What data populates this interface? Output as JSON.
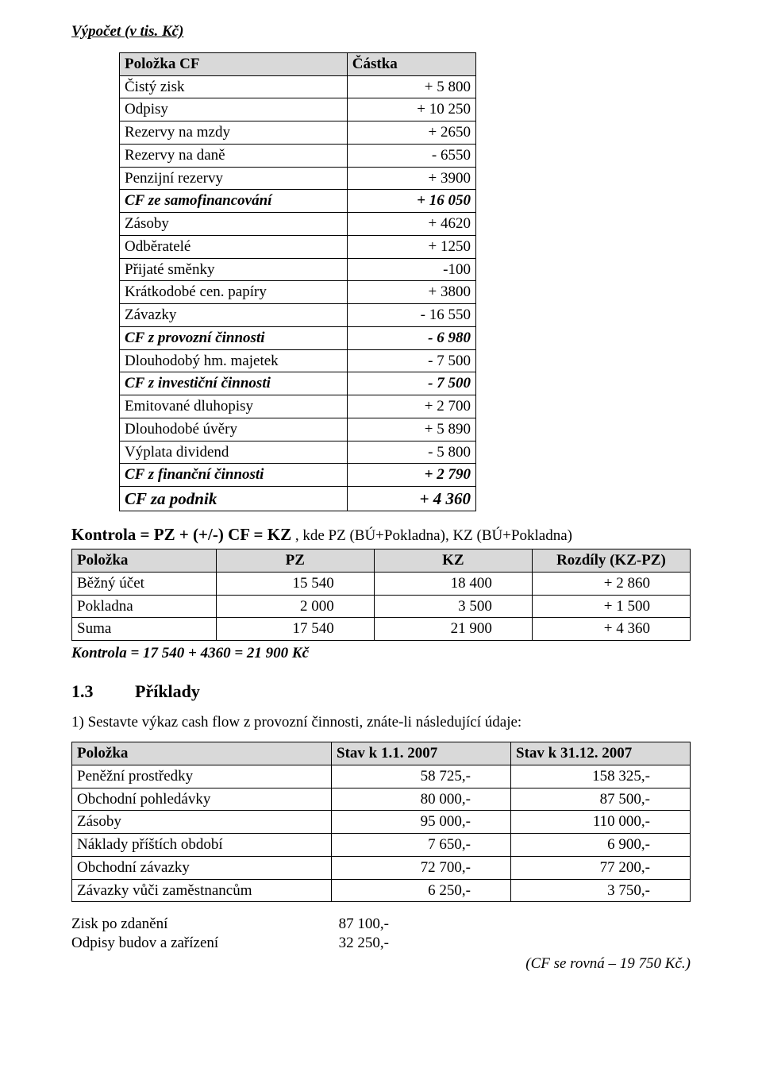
{
  "title": "Výpočet (v tis. Kč)",
  "cf_table": {
    "headers": [
      "Položka CF",
      "Částka"
    ],
    "rows": [
      {
        "label": "Čistý zisk",
        "value": "+ 5 800",
        "emph": false
      },
      {
        "label": "Odpisy",
        "value": "+ 10 250",
        "emph": false
      },
      {
        "label": "Rezervy na mzdy",
        "value": "+ 2650",
        "emph": false
      },
      {
        "label": "Rezervy na daně",
        "value": "- 6550",
        "emph": false
      },
      {
        "label": "Penzijní rezervy",
        "value": "+ 3900",
        "emph": false
      },
      {
        "label": "CF ze samofinancování",
        "value": "+ 16 050",
        "emph": true
      },
      {
        "label": "Zásoby",
        "value": "+ 4620",
        "emph": false
      },
      {
        "label": "Odběratelé",
        "value": "+ 1250",
        "emph": false
      },
      {
        "label": "Přijaté směnky",
        "value": "-100",
        "emph": false
      },
      {
        "label": "Krátkodobé cen. papíry",
        "value": "+ 3800",
        "emph": false
      },
      {
        "label": "Závazky",
        "value": "- 16 550",
        "emph": false
      },
      {
        "label": "CF z provozní činnosti",
        "value": "- 6 980",
        "emph": true
      },
      {
        "label": "Dlouhodobý hm. majetek",
        "value": "- 7 500",
        "emph": false
      },
      {
        "label": "CF z investiční činnosti",
        "value": "- 7 500",
        "emph": true
      },
      {
        "label": "Emitované dluhopisy",
        "value": "+ 2 700",
        "emph": false
      },
      {
        "label": "Dlouhodobé úvěry",
        "value": "+ 5 890",
        "emph": false
      },
      {
        "label": "Výplata dividend",
        "value": "- 5 800",
        "emph": false
      },
      {
        "label": "CF z finanční činnosti",
        "value": "+ 2 790",
        "emph": true
      },
      {
        "label": "CF za podnik",
        "value": "+ 4 360",
        "big": true
      }
    ]
  },
  "kontrola": {
    "bold_part": "Kontrola = PZ + (+/-) CF = KZ",
    "rest": " , kde PZ (BÚ+Pokladna), KZ (BÚ+Pokladna)"
  },
  "kz_table": {
    "headers": [
      "Položka",
      "PZ",
      "KZ",
      "Rozdíly (KZ-PZ)"
    ],
    "rows": [
      [
        "Běžný účet",
        "15 540",
        "18 400",
        "+ 2 860"
      ],
      [
        "Pokladna",
        "2 000",
        "3 500",
        "+ 1 500"
      ],
      [
        "Suma",
        "17 540",
        "21 900",
        "+ 4 360"
      ]
    ]
  },
  "kontrola_note": "Kontrola = 17 540 + 4360 = 21 900 Kč",
  "section": {
    "num": "1.3",
    "title": "Příklady"
  },
  "exercise_line": "1)  Sestavte výkaz cash flow z provozní činnosti, znáte-li následující údaje:",
  "stav_table": {
    "headers": [
      "Položka",
      "Stav k 1.1. 2007",
      "Stav k 31.12. 2007"
    ],
    "rows": [
      [
        "Peněžní prostředky",
        "58 725,-",
        "158 325,-"
      ],
      [
        "Obchodní pohledávky",
        "80 000,-",
        "87 500,-"
      ],
      [
        "Zásoby",
        "95 000,-",
        "110 000,-"
      ],
      [
        "Náklady příštích období",
        "7 650,-",
        "6 900,-"
      ],
      [
        "Obchodní závazky",
        "72 700,-",
        "77 200,-"
      ],
      [
        "Závazky vůči zaměstnancům",
        "6 250,-",
        "3 750,-"
      ]
    ]
  },
  "extra": [
    {
      "l": "Zisk po zdanění",
      "r": "87 100,-"
    },
    {
      "l": "Odpisy budov a zařízení",
      "r": "32 250,-"
    }
  ],
  "footer": "(CF se rovná – 19 750 Kč.)"
}
